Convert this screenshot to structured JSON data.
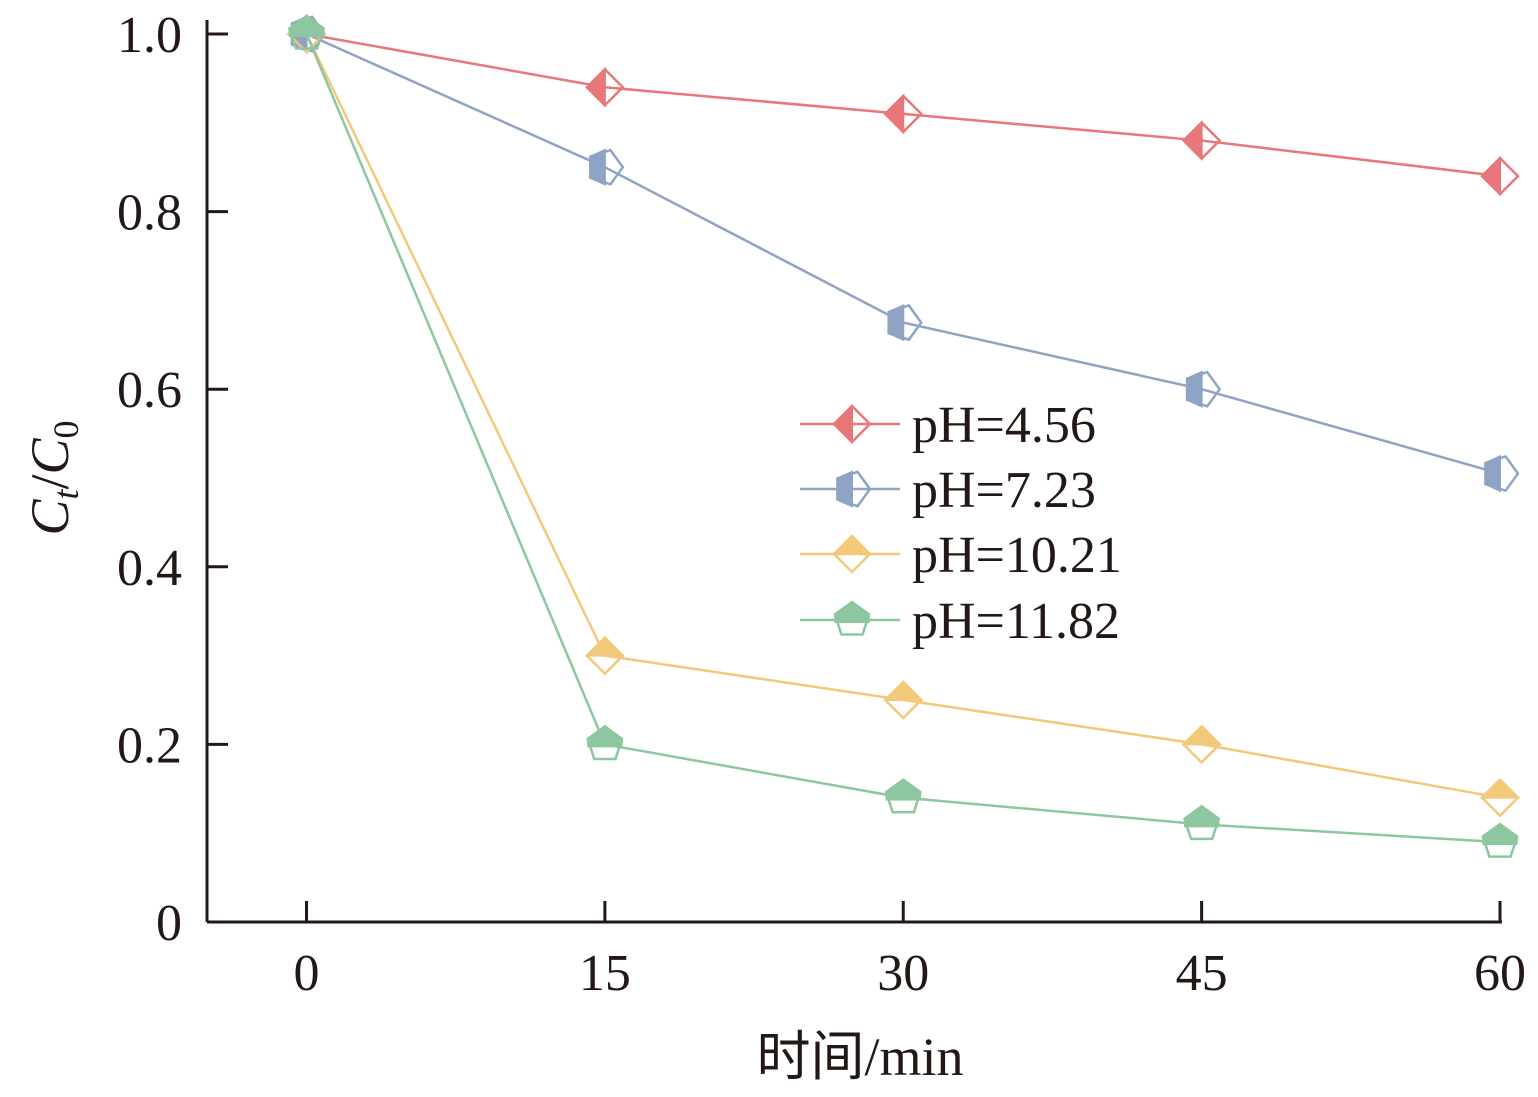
{
  "chart_data": {
    "type": "line",
    "title": "",
    "xlabel": "时间/min",
    "ylabel": {
      "c1": "C",
      "sub1": "t",
      "slash": "/",
      "c2": "C",
      "sub2": "0"
    },
    "x": [
      0,
      15,
      30,
      45,
      60
    ],
    "x_tick_labels": [
      "0",
      "15",
      "30",
      "45",
      "60"
    ],
    "y_tick_labels": [
      "0",
      "0.2",
      "0.4",
      "0.6",
      "0.8",
      "1.0"
    ],
    "y_ticks": [
      0,
      0.2,
      0.4,
      0.6,
      0.8,
      1.0
    ],
    "xlim": [
      -5,
      60
    ],
    "ylim": [
      0,
      1.0
    ],
    "legend_position": "center-right",
    "series": [
      {
        "name": "pH=4.56",
        "marker": "diamond",
        "color": "#E8777A",
        "values": [
          1.0,
          0.94,
          0.91,
          0.88,
          0.84
        ]
      },
      {
        "name": "pH=7.23",
        "marker": "pentagon-right",
        "color": "#8FA3C4",
        "values": [
          1.0,
          0.85,
          0.675,
          0.6,
          0.505
        ]
      },
      {
        "name": "pH=10.21",
        "marker": "diamond-top",
        "color": "#F2C879",
        "values": [
          1.0,
          0.3,
          0.25,
          0.2,
          0.14
        ]
      },
      {
        "name": "pH=11.82",
        "marker": "pentagon-top",
        "color": "#8DC7A0",
        "values": [
          1.0,
          0.2,
          0.14,
          0.11,
          0.09
        ]
      }
    ]
  }
}
